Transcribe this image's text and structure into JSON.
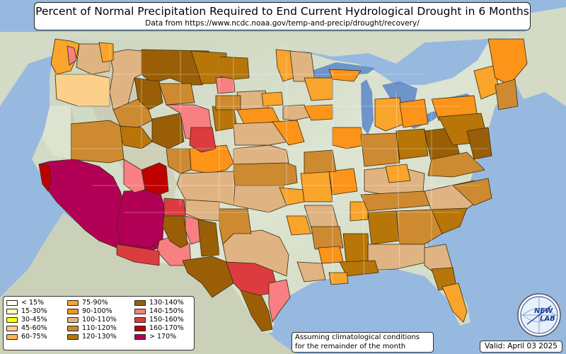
{
  "title": "Percent of Normal Precipitation Required to End Current Hydrological Drought in 6 Months",
  "subtitle": "Data from https://www.ncdc.noaa.gov/temp-and-precip/drought/recovery/",
  "legend": [
    {
      "label": "< 15%",
      "color": "#fffde6"
    },
    {
      "label": "15-30%",
      "color": "#ffffb0"
    },
    {
      "label": "30-45%",
      "color": "#ffff00"
    },
    {
      "label": "45-60%",
      "color": "#fcd08a"
    },
    {
      "label": "60-75%",
      "color": "#fdb451"
    },
    {
      "label": "75-90%",
      "color": "#f9a42a"
    },
    {
      "label": "90-100%",
      "color": "#fb9418"
    },
    {
      "label": "100-110%",
      "color": "#dfb482"
    },
    {
      "label": "110-120%",
      "color": "#cd8a30"
    },
    {
      "label": "120-130%",
      "color": "#b77607"
    },
    {
      "label": "130-140%",
      "color": "#9a5f06"
    },
    {
      "label": "140-150%",
      "color": "#f88082"
    },
    {
      "label": "150-160%",
      "color": "#dc3c40"
    },
    {
      "label": "160-170%",
      "color": "#bf0000"
    },
    {
      "label": "> 170%",
      "color": "#b20056"
    }
  ],
  "note": {
    "line1": "Assuming climatological conditions",
    "line2": "for the remainder of the month"
  },
  "valid": "Valid: April 03 2025",
  "logo": {
    "line1": "NEW",
    "line2": "LAB"
  },
  "colors": {
    "ocean": "#97b8df",
    "land": "#dce3cf",
    "mountains": "#c4b79a",
    "lakes": "#5a86c8"
  }
}
